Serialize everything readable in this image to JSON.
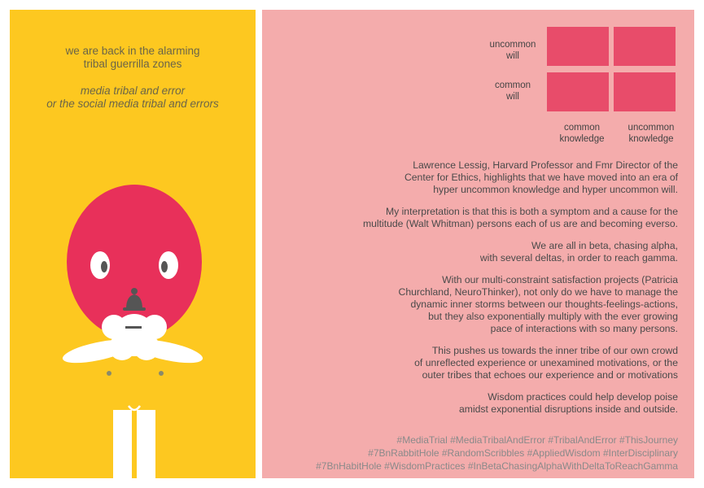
{
  "left": {
    "title_lines": [
      "we are back in the alarming",
      "tribal guerrilla zones"
    ],
    "subtitle_lines": [
      "media tribal and error",
      "or the social media tribal and errors"
    ]
  },
  "grid": {
    "row_labels": [
      "uncommon\nwill",
      "common\nwill"
    ],
    "col_labels": [
      "common\nknowledge",
      "uncommon\nknowledge"
    ],
    "cell_color": "#e84c6a"
  },
  "paragraphs": [
    "Lawrence Lessig, Harvard Professor and Fmr Director of  the\nCenter for Ethics, highlights that we have moved into an era of\nhyper uncommon knowledge and  hyper uncommon will.",
    "My interpretation is that this is both a symptom and a cause for the\nmultitude (Walt Whitman) persons each of us are and becoming everso.",
    "We are all in beta, chasing alpha,\nwith several deltas, in order to reach gamma.",
    "With our multi-constraint satisfaction projects  (Patricia\nChurchland, NeuroThinker), not only do we have to manage the\ndynamic inner storms between our thoughts-feelings-actions,\nbut they also exponentially multiply with the ever growing\npace of  interactions with so many persons.",
    "This pushes us towards the inner tribe of our own crowd\nof unreflected experience or unexamined motivations, or the\nouter tribes that echoes our experience and or motivations",
    "Wisdom practices could help develop poise\namidst exponential disruptions inside and outside."
  ],
  "hashtags": "#MediaTrial #MediaTribalAndError #TribalAndError  #ThisJourney\n#7BnRabbitHole #RandomScribbles #AppliedWisdom #InterDisciplinary\n#7BnHabitHole #WisdomPractices #InBetaChasingAlphaWithDeltaToReachGamma",
  "colors": {
    "left_panel": "#fdc820",
    "right_panel": "#f4acac",
    "head": "#e8305a",
    "nose": "#555555",
    "beard": "#ffffff"
  }
}
